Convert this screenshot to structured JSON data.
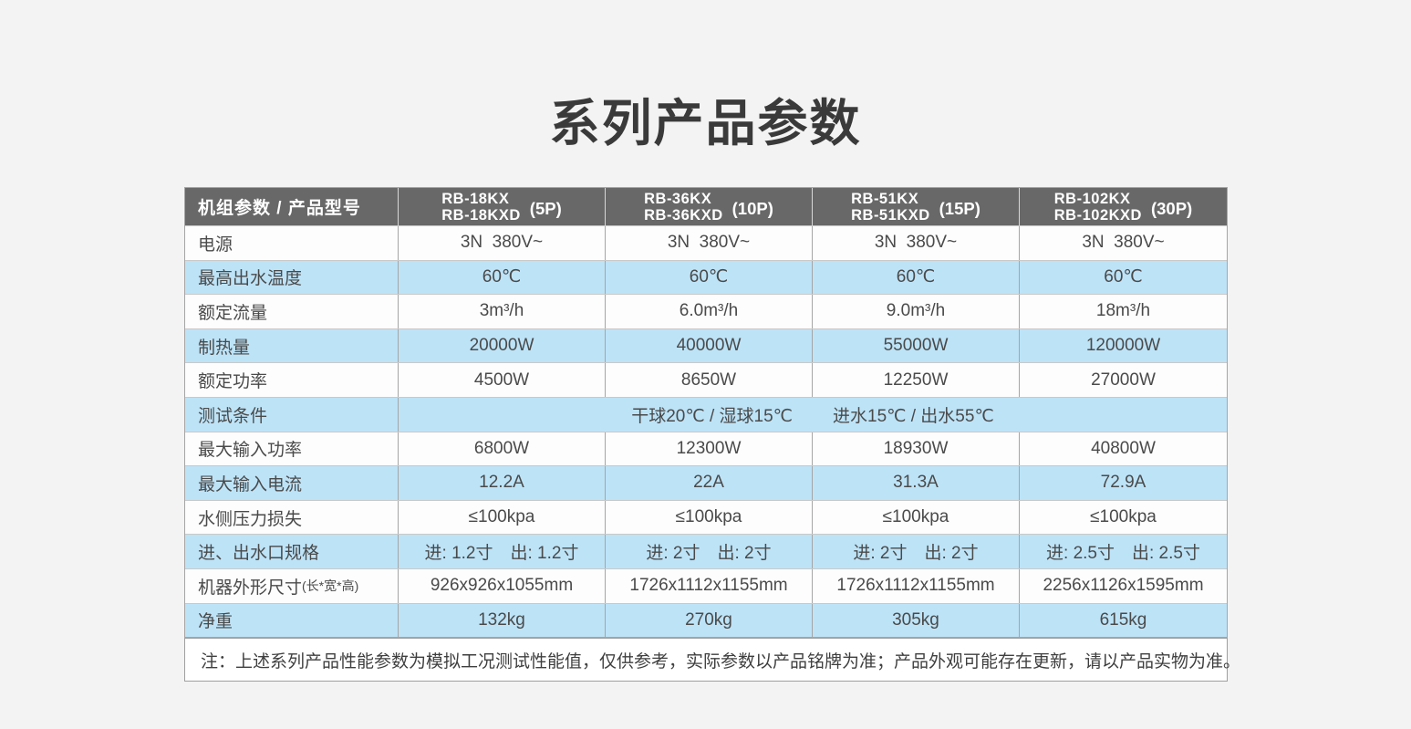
{
  "title": "系列产品参数",
  "colors": {
    "page_background": "#f3f3f3",
    "header_background": "#686868",
    "header_text": "#ffffff",
    "row_blue": "#bde3f7",
    "row_white": "#fdfdfd",
    "border": "#a5a5a5",
    "text": "#4a4a4a"
  },
  "table": {
    "header": {
      "corner": "机组参数 / 产品型号",
      "columns": [
        {
          "model1": "RB-18KX",
          "model2": "RB-18KXD",
          "power": "(5P)"
        },
        {
          "model1": "RB-36KX",
          "model2": "RB-36KXD",
          "power": "(10P)"
        },
        {
          "model1": "RB-51KX",
          "model2": "RB-51KXD",
          "power": "(15P)"
        },
        {
          "model1": "RB-102KX",
          "model2": "RB-102KXD",
          "power": "(30P)"
        }
      ]
    },
    "rows": [
      {
        "label": "电源",
        "values": [
          "3N  380V~",
          "3N  380V~",
          "3N  380V~",
          "3N  380V~"
        ]
      },
      {
        "label": "最高出水温度",
        "values": [
          "60℃",
          "60℃",
          "60℃",
          "60℃"
        ]
      },
      {
        "label": "额定流量",
        "values": [
          "3m³/h",
          "6.0m³/h",
          "9.0m³/h",
          "18m³/h"
        ]
      },
      {
        "label": "制热量",
        "values": [
          "20000W",
          "40000W",
          "55000W",
          "120000W"
        ]
      },
      {
        "label": "额定功率",
        "values": [
          "4500W",
          "8650W",
          "12250W",
          "27000W"
        ]
      },
      {
        "label": "测试条件",
        "part1": "干球20℃ / 湿球15℃",
        "part2": "进水15℃ / 出水55℃"
      },
      {
        "label": "最大输入功率",
        "values": [
          "6800W",
          "12300W",
          "18930W",
          "40800W"
        ]
      },
      {
        "label": "最大输入电流",
        "values": [
          "12.2A",
          "22A",
          "31.3A",
          "72.9A"
        ]
      },
      {
        "label": "水侧压力损失",
        "values": [
          "≤100kpa",
          "≤100kpa",
          "≤100kpa",
          "≤100kpa"
        ]
      },
      {
        "label": "进、出水口规格",
        "values": [
          "进: 1.2寸　出: 1.2寸",
          "进: 2寸　出: 2寸",
          "进: 2寸　出: 2寸",
          "进: 2.5寸　出: 2.5寸"
        ]
      },
      {
        "label": "机器外形尺寸",
        "label_small": "(长*宽*高)",
        "values": [
          "926x926x1055mm",
          "1726x1112x1155mm",
          "1726x1112x1155mm",
          "2256x1126x1595mm"
        ]
      },
      {
        "label": "净重",
        "values": [
          "132kg",
          "270kg",
          "305kg",
          "615kg"
        ]
      }
    ],
    "note": "注：上述系列产品性能参数为模拟工况测试性能值，仅供参考，实际参数以产品铭牌为准；产品外观可能存在更新，请以产品实物为准。"
  }
}
